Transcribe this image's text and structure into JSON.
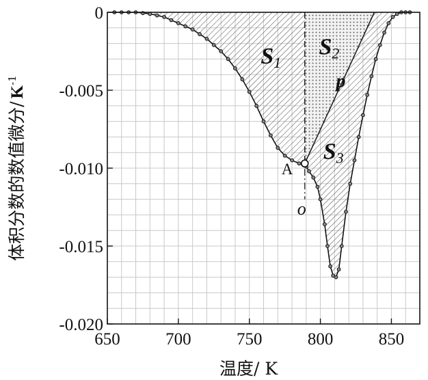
{
  "chart_data": {
    "type": "line",
    "xlabel": "温度/ K",
    "ylabel": "体积分数的数值微分/",
    "ylabel_unit": "K",
    "ylabel_unit_exp": "-1",
    "xlim": [
      650,
      870
    ],
    "ylim": [
      -0.02,
      0.0
    ],
    "grid": true,
    "x_ticks": [
      650,
      700,
      750,
      800,
      850
    ],
    "x_tick_labels": [
      "650",
      "700",
      "750",
      "800",
      "850"
    ],
    "y_ticks": [
      0,
      -0.005,
      -0.01,
      -0.015,
      -0.02
    ],
    "y_tick_labels": [
      "0",
      "-0.005",
      "-0.010",
      "-0.015",
      "-0.020"
    ],
    "series": [
      {
        "marker": "circle",
        "x": [
          655,
          660,
          665,
          670,
          675,
          680,
          685,
          690,
          695,
          700,
          705,
          710,
          715,
          720,
          725,
          730,
          735,
          740,
          745,
          750,
          755,
          760,
          765,
          770,
          775,
          780,
          785,
          788,
          790,
          792,
          795,
          798,
          800,
          803,
          805,
          807,
          809,
          811,
          813,
          815,
          818,
          821,
          824,
          827,
          830,
          833,
          836,
          839,
          842,
          845,
          848,
          851,
          854,
          857,
          860,
          863
        ],
        "y": [
          0,
          0,
          0,
          0,
          -5e-05,
          -0.0001,
          -0.0002,
          -0.0003,
          -0.0005,
          -0.0007,
          -0.0009,
          -0.0011,
          -0.0014,
          -0.0017,
          -0.0021,
          -0.0025,
          -0.003,
          -0.0036,
          -0.0043,
          -0.0051,
          -0.006,
          -0.007,
          -0.0079,
          -0.0087,
          -0.0092,
          -0.0095,
          -0.0097,
          -0.0098,
          -0.0099,
          -0.0102,
          -0.0106,
          -0.0112,
          -0.012,
          -0.0136,
          -0.015,
          -0.0163,
          -0.0169,
          -0.017,
          -0.0165,
          -0.015,
          -0.0128,
          -0.011,
          -0.0095,
          -0.008,
          -0.0066,
          -0.0053,
          -0.0041,
          -0.003,
          -0.0021,
          -0.0013,
          -0.0007,
          -0.0003,
          -0.0001,
          0,
          0,
          0
        ]
      }
    ],
    "annotations": {
      "s1_label": "S",
      "s1_sub": "1",
      "s2_label": "S",
      "s2_sub": "2",
      "s3_label": "S",
      "s3_sub": "3",
      "p_label": "p",
      "a_label": "A",
      "o_label": "o",
      "point_a": [
        789,
        -0.0097
      ],
      "point_o_y": -0.012,
      "vertical_x": 789,
      "tangent_top_x": 838
    }
  }
}
